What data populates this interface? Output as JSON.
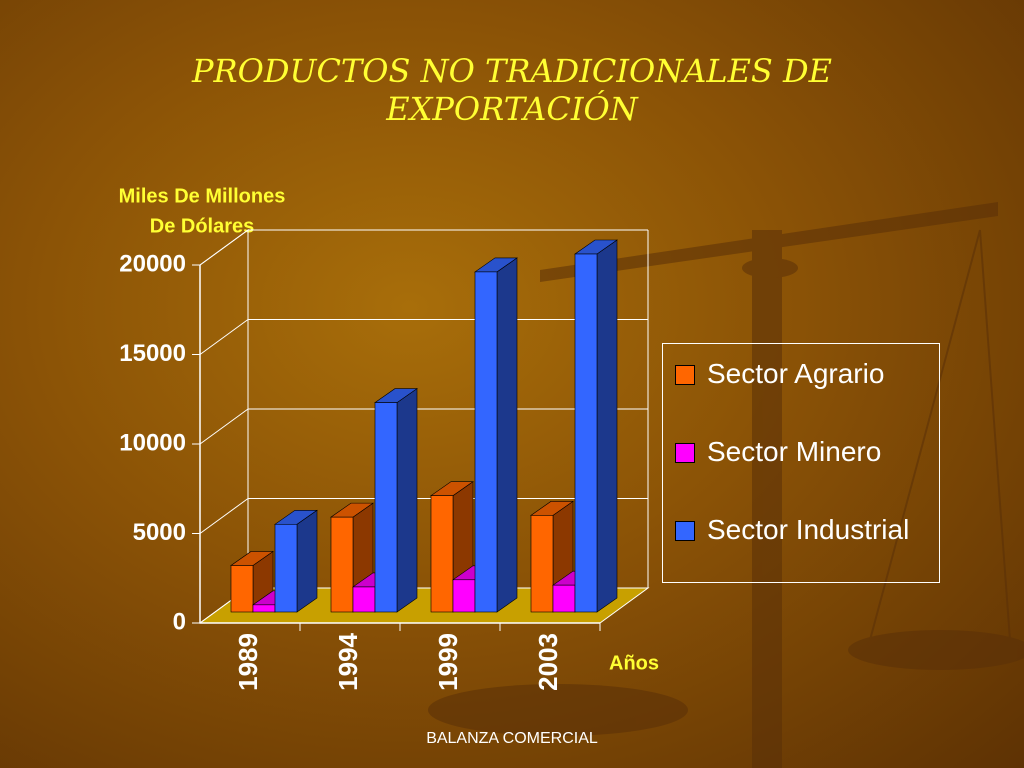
{
  "chart_data": {
    "type": "bar3d",
    "title": "PRODUCTOS NO TRADICIONALES DE EXPORTACIÓN",
    "ylabel": [
      "Miles De Millones",
      "De Dólares"
    ],
    "xlabel": "Años",
    "footer": "BALANZA COMERCIAL",
    "categories": [
      "1989",
      "1994",
      "1999",
      "2003"
    ],
    "series": [
      {
        "name": "Sector Agrario",
        "color": "#ff6600",
        "values": [
          2600,
          5300,
          6500,
          5400
        ]
      },
      {
        "name": "Sector Minero",
        "color": "#ff00ff",
        "values": [
          400,
          1400,
          1800,
          1500
        ]
      },
      {
        "name": "Sector Industrial",
        "color": "#3366ff",
        "values": [
          4900,
          11700,
          19000,
          20000
        ]
      }
    ],
    "ylim": [
      0,
      20000
    ],
    "yticks": [
      0,
      5000,
      10000,
      15000,
      20000
    ],
    "grid": true
  }
}
